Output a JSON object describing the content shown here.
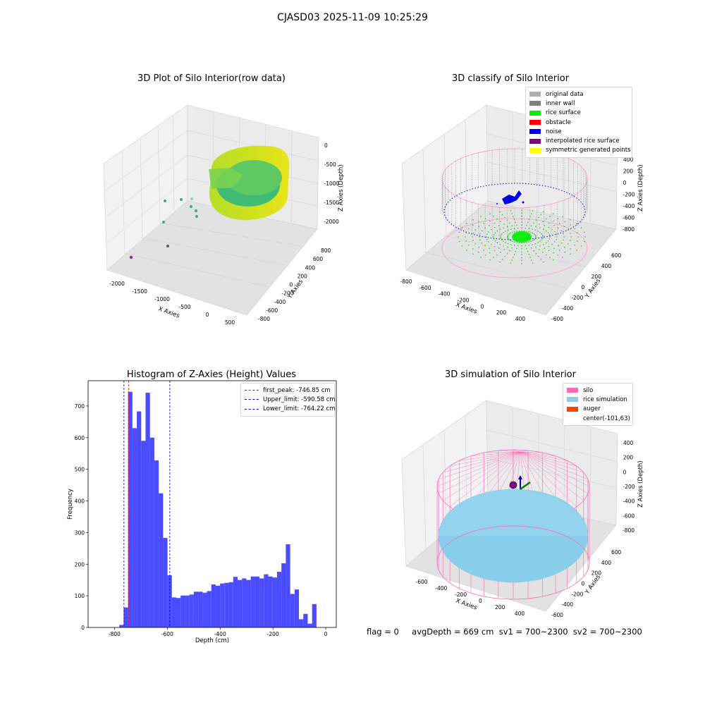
{
  "figure": {
    "suptitle": "CJASD03 2025-11-09 10:25:29"
  },
  "panel_raw": {
    "title": "3D Plot of Silo Interior(row data)",
    "x_axis": {
      "label": "X Axies",
      "ticks": [
        "-2000",
        "-1500",
        "-1000",
        "-500",
        "0",
        "500"
      ]
    },
    "y_axis": {
      "label": "Y Axies",
      "ticks": [
        "-800",
        "-600",
        "-400",
        "-200",
        "0",
        "200",
        "400",
        "600",
        "800"
      ]
    },
    "z_axis": {
      "label": "Z Axies (Depth)",
      "ticks": [
        "0",
        "-500",
        "-1000",
        "-1500",
        "-2000"
      ]
    }
  },
  "panel_classify": {
    "title": "3D classify of Silo Interior",
    "legend": [
      {
        "label": "original data",
        "color": "#b0b0b0"
      },
      {
        "label": "inner wall",
        "color": "#808080"
      },
      {
        "label": "rice surface",
        "color": "#00ee00"
      },
      {
        "label": "obstacle",
        "color": "#ff0000"
      },
      {
        "label": "noise",
        "color": "#0000ee"
      },
      {
        "label": "interpolated rice surface",
        "color": "#800080"
      },
      {
        "label": "symmetric generated points",
        "color": "#ffff00"
      }
    ],
    "x_axis": {
      "label": "X Axies",
      "ticks": [
        "-800",
        "-600",
        "-400",
        "-200",
        "0",
        "200",
        "400"
      ]
    },
    "y_axis": {
      "label": "Y Axies",
      "ticks": [
        "-600",
        "-400",
        "-200",
        "0",
        "200",
        "400",
        "600"
      ]
    },
    "z_axis": {
      "label": "Z Axies (Depth)",
      "ticks": [
        "400",
        "200",
        "0",
        "-200",
        "-400",
        "-600",
        "-800"
      ]
    }
  },
  "panel_sim": {
    "title": "3D simulation of Silo Interior",
    "legend": [
      {
        "label": "silo",
        "color": "#ff69b4"
      },
      {
        "label": "rice simulation",
        "color": "#87ceeb"
      },
      {
        "label": "auger",
        "color": "#ff4500"
      },
      {
        "label": "center(-101,63)",
        "color": ""
      }
    ],
    "x_axis": {
      "label": "X Axies",
      "ticks": [
        "-600",
        "-400",
        "-200",
        "0",
        "200",
        "400"
      ]
    },
    "y_axis": {
      "label": "Y Axies",
      "ticks": [
        "-600",
        "-400",
        "-200",
        "0",
        "200",
        "400",
        "600"
      ]
    },
    "z_axis": {
      "label": "Z Axies (Depth)",
      "ticks": [
        "400",
        "200",
        "0",
        "-200",
        "-400",
        "-600",
        "-800"
      ]
    }
  },
  "footer": {
    "flag": "flag = 0",
    "stats": "avgDepth = 669 cm  sv1 = 700~2300  sv2 = 700~2300"
  },
  "chart_data": [
    {
      "type": "histogram",
      "title": "Histogram of Z-Axies (Height) Values",
      "xlabel": "Depth (cm)",
      "ylabel": "Frequency",
      "xlim": [
        -900,
        40
      ],
      "ylim": [
        0,
        780
      ],
      "xticks": [
        -800,
        -600,
        -400,
        -200,
        0
      ],
      "yticks": [
        0,
        100,
        200,
        300,
        400,
        500,
        600,
        700
      ],
      "bar_color": "#0000ff",
      "bins_start": -782,
      "bin_width": 16.6,
      "values": [
        8,
        63,
        745,
        630,
        683,
        590,
        742,
        600,
        528,
        424,
        283,
        165,
        95,
        93,
        101,
        101,
        104,
        113,
        113,
        110,
        115,
        136,
        132,
        139,
        141,
        143,
        160,
        150,
        155,
        150,
        161,
        161,
        155,
        168,
        161,
        158,
        176,
        203,
        263,
        106,
        120,
        26,
        43,
        12,
        74
      ],
      "vlines": [
        {
          "name": "first_peak: -746.85 cm",
          "x": -746.85,
          "color": "#ff0000"
        },
        {
          "name": "Upper_limit: -590.58 cm",
          "x": -590.58,
          "color": "#0000cc"
        },
        {
          "name": "Lower_limit: -764.22 cm",
          "x": -764.22,
          "color": "#0000cc"
        }
      ],
      "grid": false,
      "legend_position": "top-right"
    }
  ]
}
